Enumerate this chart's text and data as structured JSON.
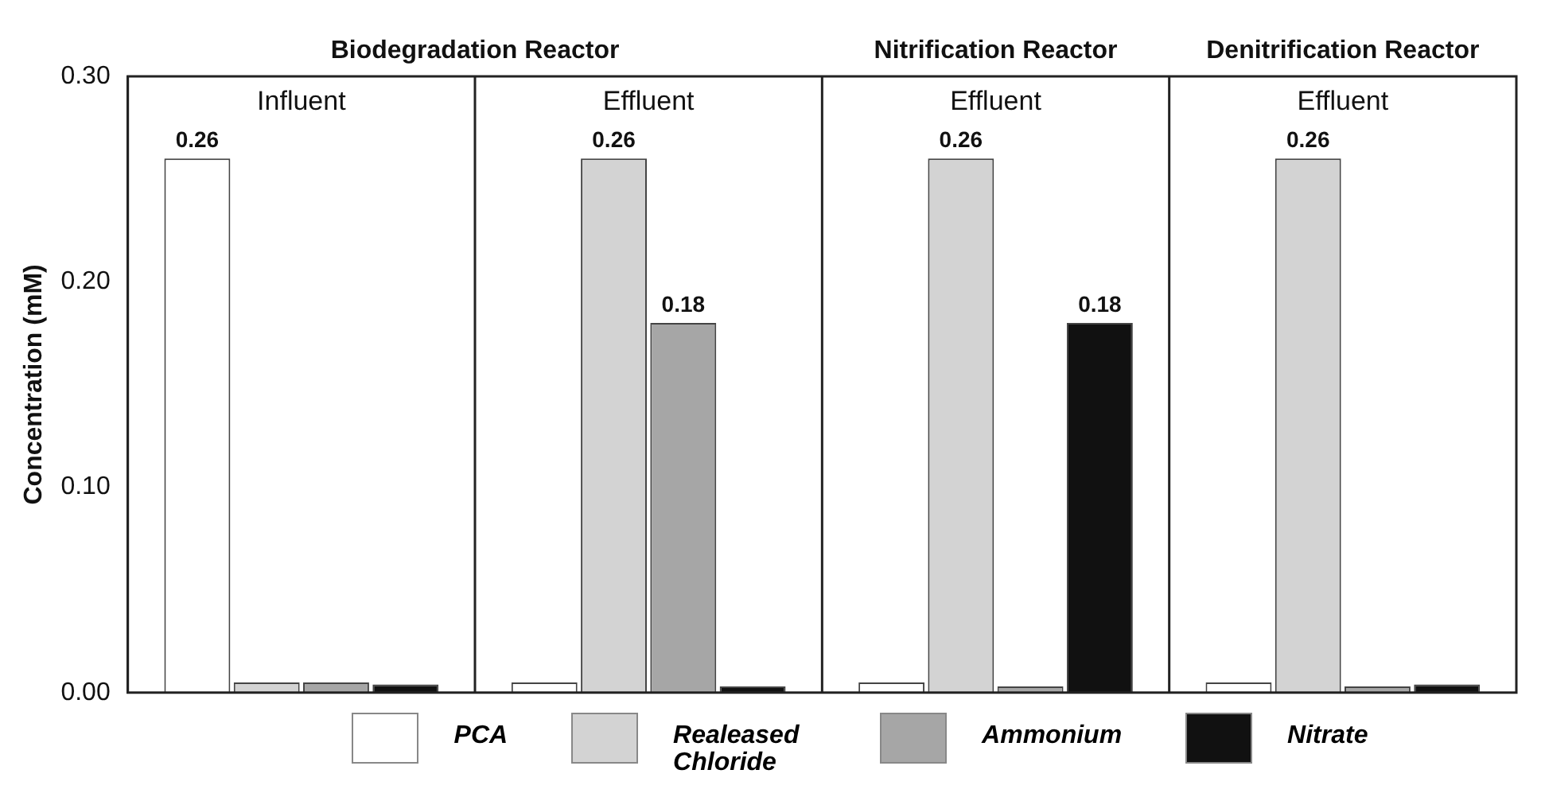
{
  "chart_data": {
    "type": "bar",
    "ylabel": "Concentration (mM)",
    "annotations": [
      "Biodegradation Reactor",
      "Nitrification Reactor",
      "Denitrification Reactor"
    ],
    "categories": [
      "Influent",
      "Effluent",
      "Effluent",
      "Effluent"
    ],
    "series": [
      {
        "name": "PCA",
        "color": "#ffffff",
        "values": [
          0.26,
          0.005,
          0.005,
          0.005
        ],
        "value_labels": [
          "0.26",
          null,
          null,
          null
        ]
      },
      {
        "name": "Realeased Chloride",
        "color": "#d3d3d3",
        "values": [
          0.005,
          0.26,
          0.26,
          0.26
        ],
        "value_labels": [
          null,
          "0.26",
          "0.26",
          "0.26"
        ]
      },
      {
        "name": "Ammonium",
        "color": "#a6a6a6",
        "values": [
          0.005,
          0.18,
          0.003,
          0.003
        ],
        "value_labels": [
          null,
          "0.18",
          null,
          null
        ]
      },
      {
        "name": "Nitrate",
        "color": "#111111",
        "values": [
          0.004,
          0.003,
          0.18,
          0.004
        ],
        "value_labels": [
          null,
          null,
          "0.18",
          null
        ]
      }
    ],
    "ylim": [
      0,
      0.3
    ],
    "yticks": [
      {
        "value": 0,
        "label": "0.00"
      },
      {
        "value": 0.1,
        "label": "0.10"
      },
      {
        "value": 0.2,
        "label": "0.20"
      },
      {
        "value": 0.3,
        "label": "0.30"
      }
    ],
    "grid": false,
    "legend": "bottom"
  }
}
